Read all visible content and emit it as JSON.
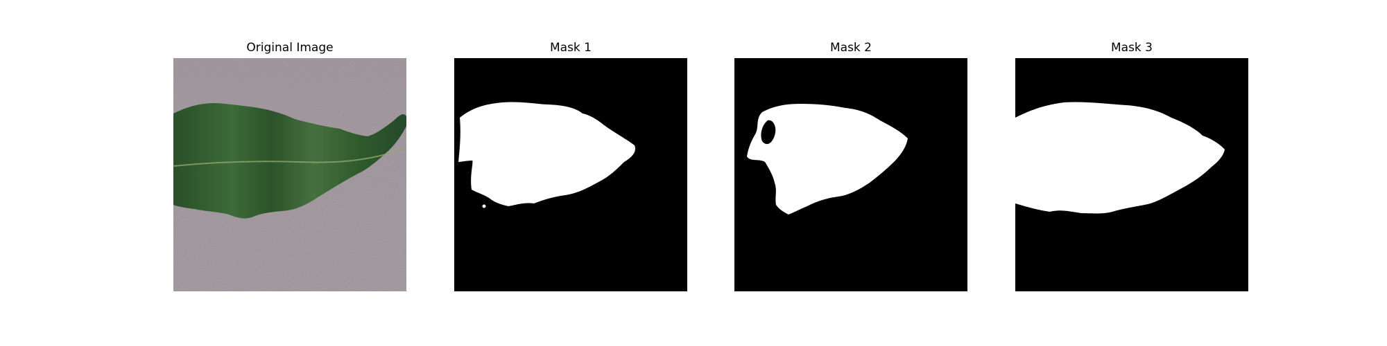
{
  "figure": {
    "panels": [
      {
        "title": "Original Image",
        "kind": "photo",
        "subject": "leaf-on-gray-background"
      },
      {
        "title": "Mask 1",
        "kind": "binary-mask"
      },
      {
        "title": "Mask 2",
        "kind": "binary-mask"
      },
      {
        "title": "Mask 3",
        "kind": "binary-mask"
      }
    ],
    "colors": {
      "mask_background": "#000000",
      "mask_foreground": "#ffffff",
      "photo_background": "#a69aa1",
      "leaf": "#2f5a2c"
    }
  }
}
